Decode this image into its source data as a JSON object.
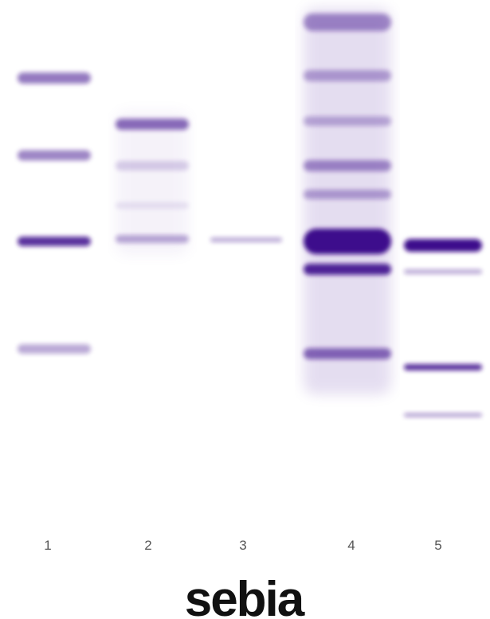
{
  "image": {
    "stain_color": "#3d0a8c",
    "background": "#ffffff"
  },
  "lanes": [
    {
      "label": "1",
      "bands": [
        {
          "intensity": 0.55
        },
        {
          "intensity": 0.5
        },
        {
          "intensity": 0.85
        },
        {
          "intensity": 0.35
        }
      ]
    },
    {
      "label": "2",
      "bands": [
        {
          "intensity": 0.6
        },
        {
          "intensity": 0.18
        },
        {
          "intensity": 0.1
        },
        {
          "intensity": 0.35
        }
      ]
    },
    {
      "label": "3",
      "bands": [
        {
          "intensity": 0.35
        }
      ]
    },
    {
      "label": "4",
      "bands": [
        {
          "intensity": 0.45
        },
        {
          "intensity": 0.35
        },
        {
          "intensity": 0.3
        },
        {
          "intensity": 0.45
        },
        {
          "intensity": 0.35
        },
        {
          "intensity": 1.0
        },
        {
          "intensity": 0.9
        },
        {
          "intensity": 0.6
        }
      ]
    },
    {
      "label": "5",
      "bands": [
        {
          "intensity": 1.0
        },
        {
          "intensity": 0.35
        },
        {
          "intensity": 0.85
        },
        {
          "intensity": 0.4
        }
      ]
    }
  ],
  "logo_text": "sebia"
}
